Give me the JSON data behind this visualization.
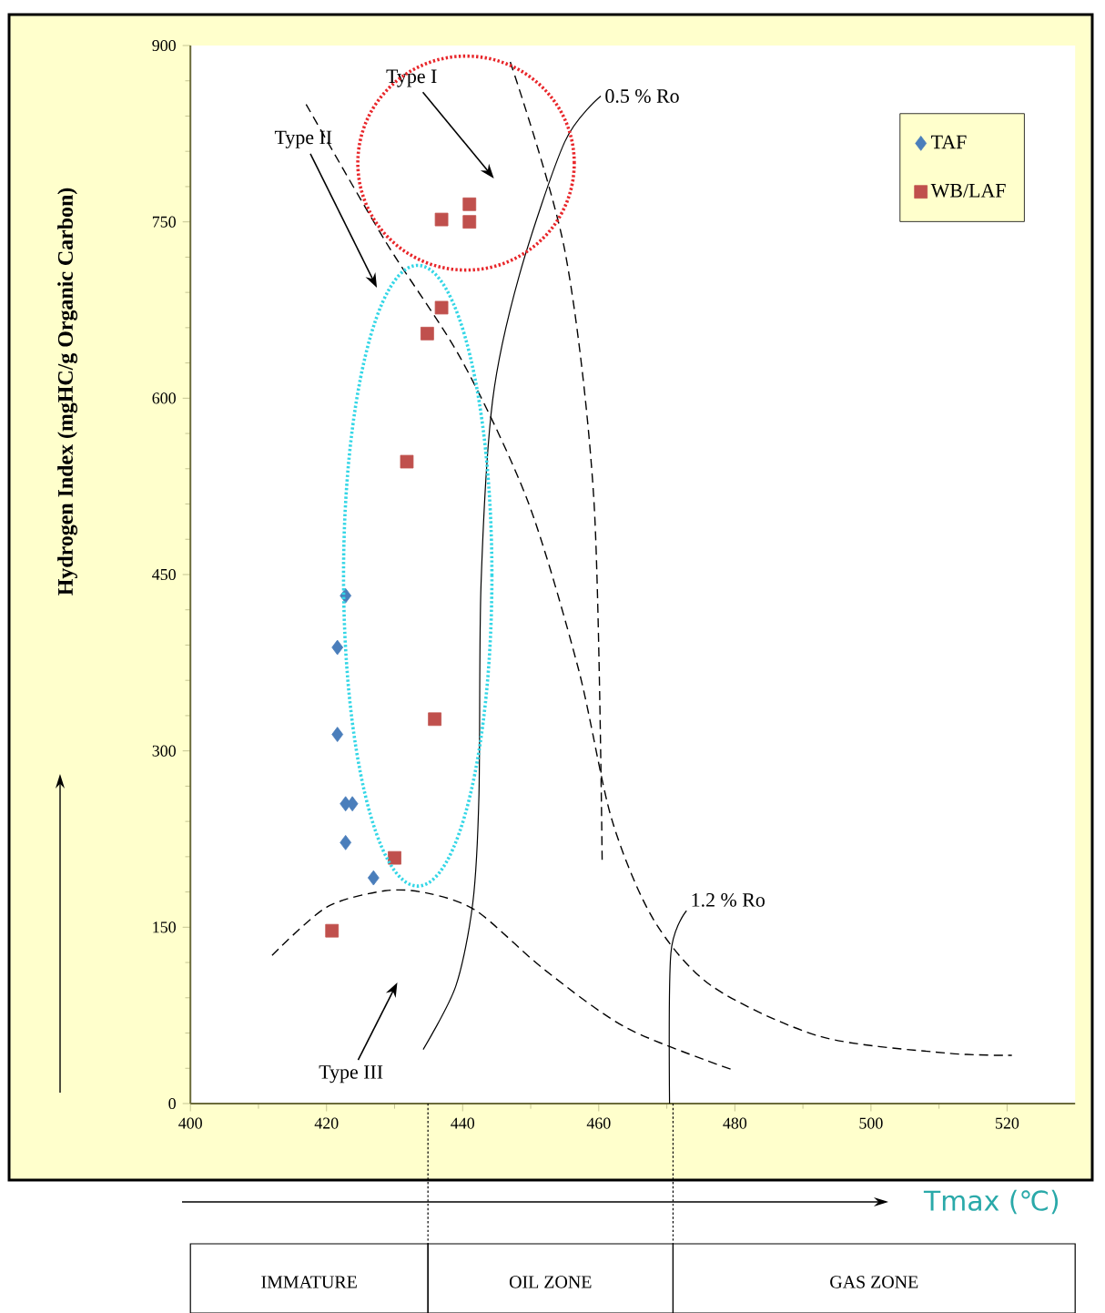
{
  "chart_data": {
    "type": "scatter",
    "xlabel": "Tmax (℃)",
    "ylabel": "Hydrogen Index (mgHC/g Organic Carbon)",
    "xlim": [
      400,
      530
    ],
    "ylim": [
      0,
      900
    ],
    "xticks": [
      400,
      420,
      440,
      460,
      480,
      500,
      520
    ],
    "yticks": [
      0,
      150,
      300,
      450,
      600,
      750,
      900
    ],
    "legend": "top right",
    "series": [
      {
        "name": "TAF",
        "marker": "diamond",
        "color": "#4a7ebb",
        "x": [
          422.8,
          421.6,
          421.6,
          422.8,
          423.8,
          422.8,
          426.9
        ],
        "values": [
          432,
          388,
          314,
          255,
          255,
          222,
          192
        ]
      },
      {
        "name": "WB/LAF",
        "marker": "square",
        "color": "#c0504d",
        "x": [
          436.9,
          441,
          441,
          436.9,
          434.8,
          431.8,
          435.9,
          430,
          420.8
        ],
        "values": [
          752,
          765,
          750,
          677,
          655,
          546,
          327,
          209,
          147
        ]
      },
      {
        "type": "line",
        "line_style": "dashed",
        "color": "#000000",
        "x": [
          447,
          455,
          459.3,
          460.5
        ],
        "values": [
          886,
          726,
          512,
          206
        ]
      },
      {
        "type": "line",
        "line_style": "dashed",
        "color": "#000000",
        "x": [
          417,
          428.7,
          439.8,
          449.6,
          457,
          461.9,
          468,
          476.6,
          492.6,
          511,
          520.7
        ],
        "values": [
          850,
          733,
          633,
          512,
          370,
          242,
          157,
          100,
          57,
          43,
          41
        ]
      },
      {
        "type": "line",
        "line_style": "dashed",
        "color": "#000000",
        "x": [
          412,
          420,
          428.6,
          434.8,
          442,
          452,
          464.2,
          480
        ],
        "values": [
          126,
          167,
          181,
          179,
          164,
          114,
          64,
          28
        ]
      },
      {
        "type": "line",
        "line_style": "solid",
        "color": "#000000",
        "x": [
          434.2,
          439,
          441.5,
          442.4,
          442.7,
          444.4,
          448.3,
          455,
          460.3
        ],
        "values": [
          46,
          100,
          171,
          263,
          441,
          598,
          704,
          818,
          857
        ]
      },
      {
        "type": "line",
        "line_style": "solid",
        "color": "#000000",
        "x": [
          470.4,
          470.6,
          472.9
        ],
        "values": [
          0,
          128,
          164
        ]
      }
    ],
    "annotations": [
      "Type I",
      "Type II",
      "Type III",
      {
        "text": "0.5 % Ro",
        "x": 460.3,
        "y": 857
      },
      {
        "text": "1.2 % Ro",
        "x": 472.9,
        "y": 164
      },
      "IMMATURE",
      "OIL ZONE",
      "GAS ZONE"
    ]
  }
}
